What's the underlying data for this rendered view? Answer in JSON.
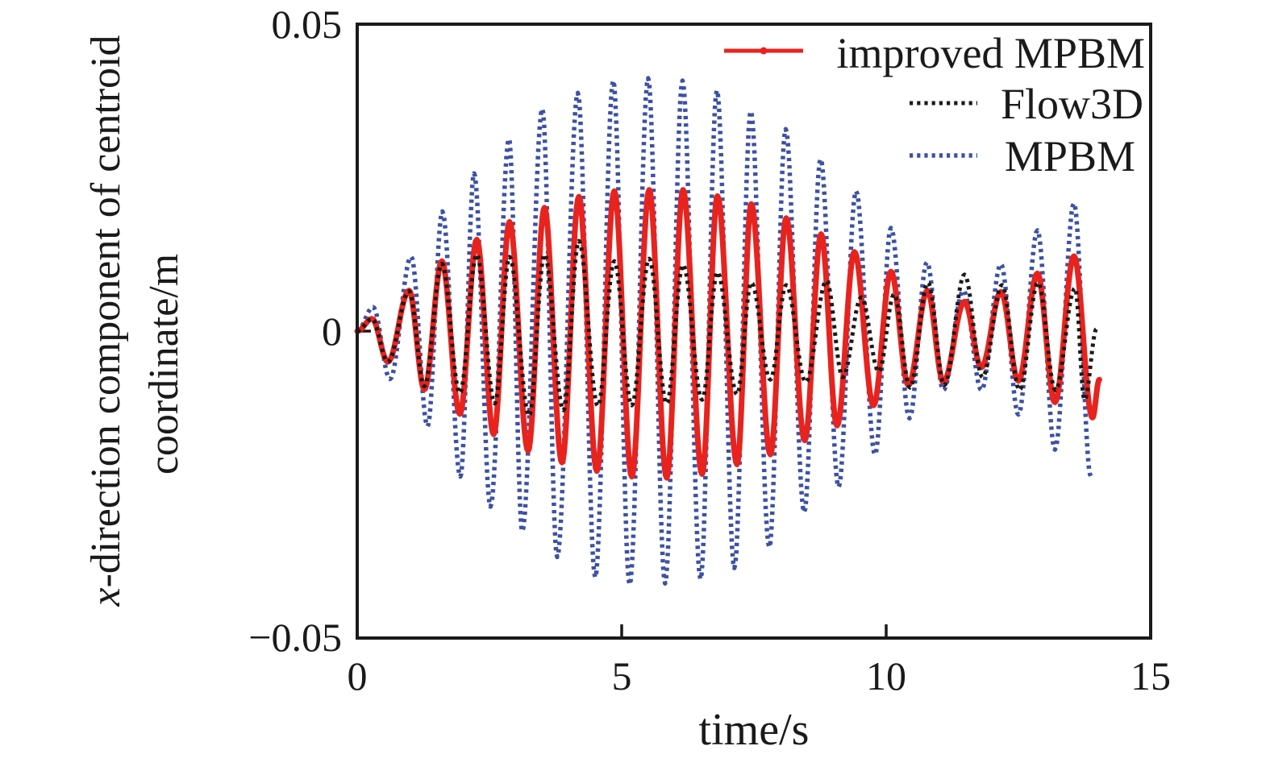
{
  "figure": {
    "background": "#ffffff",
    "frame_color": "#1a1a1a"
  },
  "axes": {
    "x_tick_labels": [
      "0",
      "5",
      "10",
      "15"
    ],
    "y_tick_labels": [
      "0.05",
      "0",
      "−0.05"
    ],
    "xlabel": "time/s",
    "ylabel_line1_italic": "x",
    "ylabel_line1_rest": "-direction component of centroid",
    "ylabel_line2": "coordinate/m"
  },
  "legend": {
    "position": "top-right-inside",
    "border": "none"
  },
  "chart_data": {
    "type": "line",
    "title": "",
    "xlabel": "time/s",
    "ylabel": "x-direction component of centroid coordinate/m",
    "xlim": [
      0,
      15
    ],
    "ylim": [
      -0.05,
      0.05
    ],
    "xticks": [
      0,
      5,
      10,
      15
    ],
    "yticks": [
      0.05,
      0,
      -0.05
    ],
    "grid": false,
    "legend_position": "top-right",
    "points_note": "extrema_points are successive local peaks/troughs [time_s, x_m]; each trace oscillates sinusoidally through them with period ~0.66 s",
    "draw_order": [
      2,
      0,
      1
    ],
    "series": [
      {
        "name": "improved MPBM",
        "color": "#e8231e",
        "line_style": "solid",
        "line_width": 7,
        "marker": "dot",
        "extrema_points": [
          [
            0,
            0
          ],
          [
            0.28,
            0.002
          ],
          [
            0.58,
            -0.005
          ],
          [
            0.98,
            0.0066
          ],
          [
            1.27,
            -0.0095
          ],
          [
            1.6,
            0.0114
          ],
          [
            1.94,
            -0.0135
          ],
          [
            2.26,
            0.0149
          ],
          [
            2.58,
            -0.0168
          ],
          [
            2.88,
            0.0178
          ],
          [
            3.23,
            -0.0195
          ],
          [
            3.54,
            0.0201
          ],
          [
            3.87,
            -0.0214
          ],
          [
            4.19,
            0.0219
          ],
          [
            4.53,
            -0.0228
          ],
          [
            4.86,
            0.0228
          ],
          [
            5.19,
            -0.0237
          ],
          [
            5.52,
            0.023
          ],
          [
            5.85,
            -0.0239
          ],
          [
            6.16,
            0.023
          ],
          [
            6.52,
            -0.0233
          ],
          [
            6.81,
            0.022
          ],
          [
            7.18,
            -0.0217
          ],
          [
            7.45,
            0.0207
          ],
          [
            7.81,
            -0.0201
          ],
          [
            8.11,
            0.0184
          ],
          [
            8.46,
            -0.0178
          ],
          [
            8.77,
            0.0158
          ],
          [
            9.07,
            -0.0154
          ],
          [
            9.4,
            0.0129
          ],
          [
            9.76,
            -0.0121
          ],
          [
            10.09,
            0.0097
          ],
          [
            10.42,
            -0.0088
          ],
          [
            10.78,
            0.0066
          ],
          [
            11.08,
            -0.0083
          ],
          [
            11.48,
            0.0048
          ],
          [
            11.8,
            -0.0059
          ],
          [
            12.17,
            0.0064
          ],
          [
            12.5,
            -0.0081
          ],
          [
            12.86,
            0.0094
          ],
          [
            13.19,
            -0.0116
          ],
          [
            13.55,
            0.0122
          ],
          [
            13.9,
            -0.0141
          ],
          [
            14.03,
            -0.0079
          ]
        ]
      },
      {
        "name": "Flow3D",
        "color": "#1a1a1a",
        "line_style": "dotted",
        "line_width": 5,
        "marker": "none",
        "extrema_points": [
          [
            0,
            0
          ],
          [
            0.28,
            0.002
          ],
          [
            0.58,
            -0.005
          ],
          [
            0.98,
            0.0065
          ],
          [
            1.27,
            -0.009
          ],
          [
            1.6,
            0.011
          ],
          [
            1.94,
            -0.0101
          ],
          [
            2.26,
            0.0125
          ],
          [
            2.6,
            -0.0118
          ],
          [
            2.88,
            0.0121
          ],
          [
            3.25,
            -0.0138
          ],
          [
            3.54,
            0.0125
          ],
          [
            3.9,
            -0.0129
          ],
          [
            4.19,
            0.0147
          ],
          [
            4.55,
            -0.0122
          ],
          [
            4.86,
            0.0114
          ],
          [
            5.19,
            -0.0121
          ],
          [
            5.52,
            0.0118
          ],
          [
            5.85,
            -0.0118
          ],
          [
            6.16,
            0.0108
          ],
          [
            6.52,
            -0.0112
          ],
          [
            6.81,
            0.0096
          ],
          [
            7.18,
            -0.0103
          ],
          [
            7.45,
            0.0079
          ],
          [
            7.81,
            -0.0079
          ],
          [
            8.11,
            0.0075
          ],
          [
            8.48,
            -0.0083
          ],
          [
            8.87,
            0.0082
          ],
          [
            9.18,
            -0.0075
          ],
          [
            9.53,
            0.0055
          ],
          [
            9.86,
            -0.0066
          ],
          [
            10.15,
            0.006
          ],
          [
            10.45,
            -0.0092
          ],
          [
            10.79,
            0.0079
          ],
          [
            11.1,
            -0.0088
          ],
          [
            11.48,
            0.0092
          ],
          [
            11.82,
            -0.0075
          ],
          [
            12.19,
            0.0075
          ],
          [
            12.52,
            -0.0096
          ],
          [
            12.87,
            0.0079
          ],
          [
            13.2,
            -0.0096
          ],
          [
            13.57,
            0.007
          ],
          [
            13.75,
            -0.0112
          ],
          [
            13.98,
            0.0004
          ]
        ]
      },
      {
        "name": "MPBM",
        "color": "#3c51a2",
        "line_style": "dotted",
        "line_width": 5.5,
        "marker": "none",
        "extrema_points": [
          [
            0,
            0
          ],
          [
            0.3,
            0.0039
          ],
          [
            0.62,
            -0.0078
          ],
          [
            1.02,
            0.0121
          ],
          [
            1.33,
            -0.0155
          ],
          [
            1.61,
            0.0195
          ],
          [
            1.95,
            -0.0237
          ],
          [
            2.21,
            0.0257
          ],
          [
            2.52,
            -0.0286
          ],
          [
            2.87,
            0.0313
          ],
          [
            3.12,
            -0.0326
          ],
          [
            3.5,
            0.0362
          ],
          [
            3.78,
            -0.0368
          ],
          [
            4.17,
            0.0388
          ],
          [
            4.5,
            -0.0401
          ],
          [
            4.84,
            0.0408
          ],
          [
            5.15,
            -0.0413
          ],
          [
            5.5,
            0.0412
          ],
          [
            5.82,
            -0.0411
          ],
          [
            6.15,
            0.0408
          ],
          [
            6.49,
            -0.0404
          ],
          [
            6.8,
            0.0392
          ],
          [
            7.13,
            -0.0386
          ],
          [
            7.44,
            0.0358
          ],
          [
            7.79,
            -0.0352
          ],
          [
            8.1,
            0.0329
          ],
          [
            8.45,
            -0.0295
          ],
          [
            8.76,
            0.028
          ],
          [
            9.1,
            -0.0254
          ],
          [
            9.43,
            0.0228
          ],
          [
            9.79,
            -0.0201
          ],
          [
            10.09,
            0.0168
          ],
          [
            10.44,
            -0.0142
          ],
          [
            10.77,
            0.0112
          ],
          [
            11.08,
            -0.0096
          ],
          [
            11.46,
            0.0066
          ],
          [
            11.8,
            -0.0096
          ],
          [
            12.17,
            0.0109
          ],
          [
            12.5,
            -0.0136
          ],
          [
            12.86,
            0.0164
          ],
          [
            13.19,
            -0.0193
          ],
          [
            13.55,
            0.0208
          ],
          [
            13.87,
            -0.0237
          ]
        ]
      }
    ]
  }
}
